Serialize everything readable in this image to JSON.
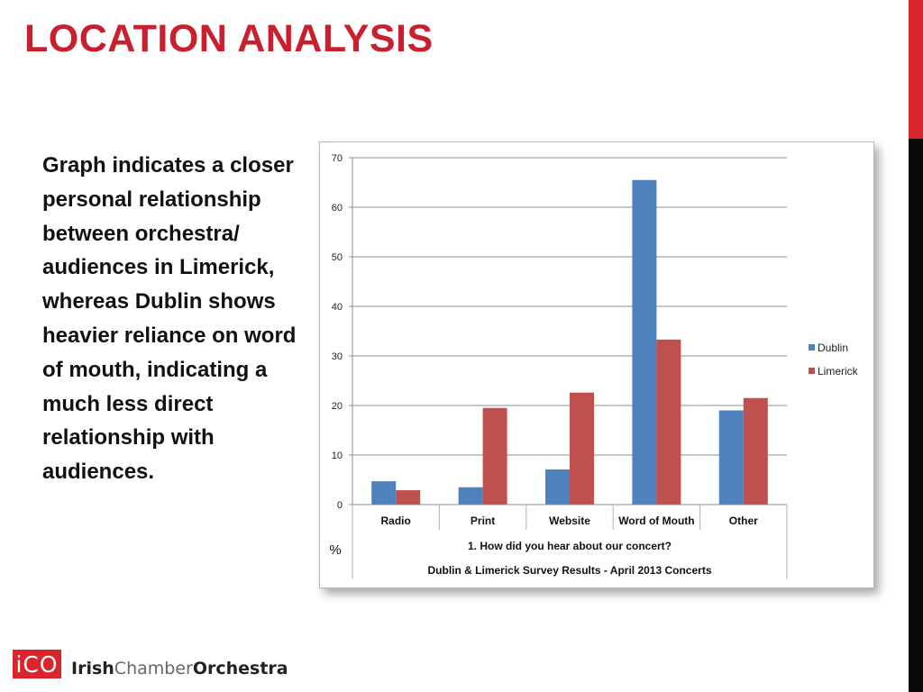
{
  "slide": {
    "title": "LOCATION ANALYSIS",
    "body": "Graph indicates a closer personal relationship between orchestra/ audiences in Limerick, whereas Dublin shows heavier reliance on word of mouth, indicating a much less direct relationship with audiences."
  },
  "colors": {
    "title": "#c8202e",
    "accent_red": "#d9262c",
    "accent_black": "#0a0a0a",
    "dublin": "#4f81bd",
    "limerick": "#c0504d"
  },
  "chart_data": {
    "type": "bar",
    "categories": [
      "Radio",
      "Print",
      "Website",
      "Word of Mouth",
      "Other"
    ],
    "series": [
      {
        "name": "Dublin",
        "values": [
          4.7,
          3.5,
          7.1,
          65.5,
          19.0
        ]
      },
      {
        "name": "Limerick",
        "values": [
          2.9,
          19.5,
          22.6,
          33.3,
          21.5
        ]
      }
    ],
    "title": "",
    "xlabel": "1. How did you hear about our concert?",
    "xlabel_sub": "Dublin & Limerick Survey Results - April 2013 Concerts",
    "ylabel": "%",
    "ylim": [
      0,
      70
    ],
    "yticks": [
      0,
      10,
      20,
      30,
      40,
      50,
      60,
      70
    ],
    "grid": true,
    "legend": "right"
  },
  "footer": {
    "logo_mark": "iCO",
    "brand_1": "Irish",
    "brand_2": "Chamber",
    "brand_3": "Orchestra"
  }
}
